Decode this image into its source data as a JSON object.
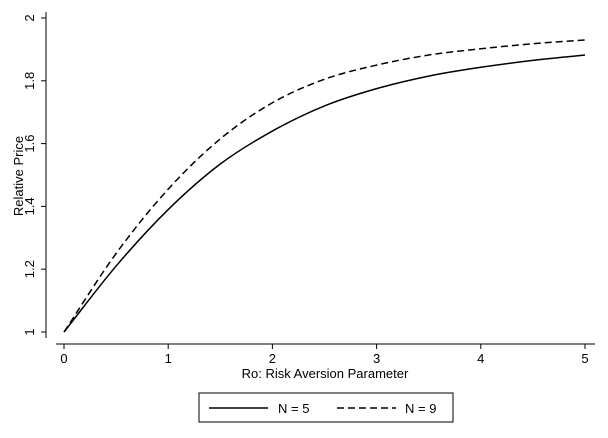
{
  "chart_data": {
    "type": "line",
    "title": "",
    "xlabel": "Ro: Risk Aversion Parameter",
    "ylabel": "Relative Price",
    "xlim": [
      0,
      5
    ],
    "ylim": [
      1,
      2
    ],
    "xticks": [
      0,
      1,
      2,
      3,
      4,
      5
    ],
    "yticks": [
      1,
      1.2,
      1.4,
      1.6,
      1.8,
      2
    ],
    "grid": false,
    "legend_position": "bottom",
    "series": [
      {
        "name": "N = 5",
        "style": "solid",
        "color": "#000000",
        "x": [
          0,
          0.5,
          1,
          1.5,
          2,
          2.5,
          3,
          3.5,
          4,
          4.5,
          5
        ],
        "y": [
          1.0,
          1.21,
          1.39,
          1.535,
          1.64,
          1.72,
          1.775,
          1.815,
          1.843,
          1.865,
          1.882
        ]
      },
      {
        "name": "N = 9",
        "style": "dashed",
        "color": "#000000",
        "x": [
          0,
          0.5,
          1,
          1.5,
          2,
          2.5,
          3,
          3.5,
          4,
          4.5,
          5
        ],
        "y": [
          1.0,
          1.25,
          1.455,
          1.615,
          1.73,
          1.805,
          1.85,
          1.882,
          1.902,
          1.918,
          1.93
        ]
      }
    ]
  }
}
